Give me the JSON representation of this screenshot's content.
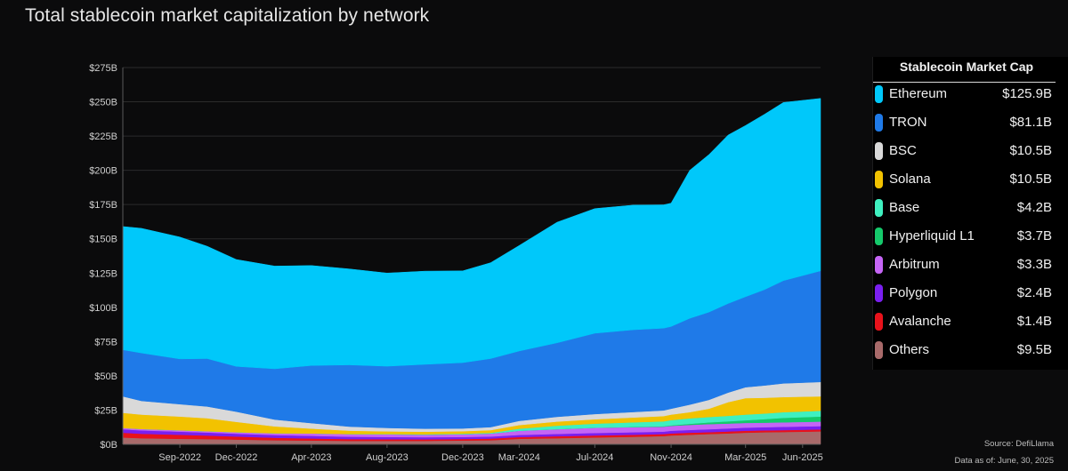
{
  "title": "Total stablecoin market capitalization by network",
  "legend": {
    "title": "Stablecoin Market Cap",
    "items": [
      {
        "name": "Ethereum",
        "value": "$125.9B",
        "color": "#00c8fa"
      },
      {
        "name": "TRON",
        "value": "$81.1B",
        "color": "#1f7ae8"
      },
      {
        "name": "BSC",
        "value": "$10.5B",
        "color": "#d9d9d9"
      },
      {
        "name": "Solana",
        "value": "$10.5B",
        "color": "#f2c200"
      },
      {
        "name": "Base",
        "value": "$4.2B",
        "color": "#3ff0c0"
      },
      {
        "name": "Hyperliquid L1",
        "value": "$3.7B",
        "color": "#15c96b"
      },
      {
        "name": "Arbitrum",
        "value": "$3.3B",
        "color": "#c565f5"
      },
      {
        "name": "Polygon",
        "value": "$2.4B",
        "color": "#7a1ff0"
      },
      {
        "name": "Avalanche",
        "value": "$1.4B",
        "color": "#e8121b"
      },
      {
        "name": "Others",
        "value": "$9.5B",
        "color": "#a86a6a"
      }
    ]
  },
  "source": "Source: DefiLlama",
  "as_of": "Data as of: June, 30, 2025",
  "chart_data": {
    "type": "area",
    "stacked": true,
    "title": "Total stablecoin market capitalization by network",
    "ylim": [
      0,
      275
    ],
    "y_unit": "$B",
    "y_ticks": [
      "$0B",
      "$25B",
      "$50B",
      "$75B",
      "$100B",
      "$125B",
      "$150B",
      "$175B",
      "$200B",
      "$225B",
      "$250B",
      "$275B"
    ],
    "x_range": [
      "2022-06-01",
      "2025-06-30"
    ],
    "x_ticks": [
      {
        "date": "2022-09-01",
        "label": "Sep-2022"
      },
      {
        "date": "2022-12-01",
        "label": "Dec-2022"
      },
      {
        "date": "2023-04-01",
        "label": "Apr-2023"
      },
      {
        "date": "2023-08-01",
        "label": "Aug-2023"
      },
      {
        "date": "2023-12-01",
        "label": "Dec-2023"
      },
      {
        "date": "2024-03-01",
        "label": "Mar-2024"
      },
      {
        "date": "2024-07-01",
        "label": "Jul-2024"
      },
      {
        "date": "2024-11-01",
        "label": "Nov-2024"
      },
      {
        "date": "2025-03-01",
        "label": "Mar-2025"
      },
      {
        "date": "2025-06-01",
        "label": "Jun-2025"
      }
    ],
    "grid": true,
    "legend_position": "right",
    "x": [
      "2022-06-01",
      "2022-07-01",
      "2022-09-01",
      "2022-10-15",
      "2022-12-01",
      "2023-02-01",
      "2023-04-01",
      "2023-06-01",
      "2023-08-01",
      "2023-10-01",
      "2023-12-01",
      "2024-01-15",
      "2024-03-01",
      "2024-05-01",
      "2024-07-01",
      "2024-09-01",
      "2024-10-20",
      "2024-11-01",
      "2024-12-01",
      "2025-01-01",
      "2025-02-01",
      "2025-03-01",
      "2025-04-01",
      "2025-05-01",
      "2025-06-30"
    ],
    "series": [
      {
        "name": "Others",
        "color": "#a86a6a",
        "values": [
          5,
          4.5,
          4,
          3.8,
          3.5,
          3,
          2.8,
          2.5,
          2.5,
          2.5,
          2.8,
          3,
          4,
          4.5,
          5,
          5.5,
          6,
          6.5,
          7,
          7.5,
          8,
          8.5,
          8.8,
          9,
          9.5
        ]
      },
      {
        "name": "Avalanche",
        "color": "#e8121b",
        "values": [
          3.5,
          3.2,
          3,
          2.6,
          2.2,
          1.8,
          1.5,
          1.3,
          1.2,
          1.1,
          1.1,
          1.2,
          1.3,
          1.4,
          1.5,
          1.5,
          1.5,
          1.5,
          1.5,
          1.4,
          1.4,
          1.4,
          1.4,
          1.4,
          1.4
        ]
      },
      {
        "name": "Polygon",
        "color": "#7a1ff0",
        "values": [
          2.5,
          2.5,
          2.3,
          2.2,
          2.1,
          2,
          1.9,
          1.8,
          1.7,
          1.6,
          1.5,
          1.5,
          1.6,
          1.7,
          1.8,
          1.8,
          1.8,
          1.9,
          2,
          2.1,
          2.2,
          2.3,
          2.3,
          2.4,
          2.4
        ]
      },
      {
        "name": "Arbitrum",
        "color": "#c565f5",
        "values": [
          1,
          1,
          1,
          1,
          1.1,
          1.3,
          1.8,
          1.9,
          1.9,
          1.9,
          2,
          2.2,
          3,
          3.5,
          3.8,
          3.7,
          3.6,
          3.6,
          3.7,
          3.8,
          3.6,
          3.4,
          3.3,
          3.3,
          3.3
        ]
      },
      {
        "name": "Hyperliquid L1",
        "color": "#15c96b",
        "values": [
          0,
          0,
          0,
          0,
          0,
          0,
          0,
          0,
          0,
          0,
          0,
          0,
          0,
          0,
          0,
          0.2,
          0.3,
          0.4,
          0.8,
          1.2,
          1.6,
          2,
          2.6,
          3.2,
          3.7
        ]
      },
      {
        "name": "Base",
        "color": "#3ff0c0",
        "values": [
          0,
          0,
          0,
          0,
          0,
          0,
          0,
          0,
          0.2,
          0.3,
          0.4,
          0.5,
          1.5,
          2.5,
          3,
          3.4,
          3.6,
          3.8,
          4,
          4,
          4,
          4.1,
          4.1,
          4.2,
          4.2
        ]
      },
      {
        "name": "Solana",
        "color": "#f2c200",
        "values": [
          11,
          10.5,
          10,
          9.5,
          7.5,
          5,
          3.5,
          2.5,
          2,
          1.8,
          1.8,
          2,
          2.7,
          3,
          3.2,
          3.5,
          3.8,
          4,
          4.5,
          6,
          10,
          12,
          11.5,
          11,
          10.5
        ]
      },
      {
        "name": "BSC",
        "color": "#d9d9d9",
        "values": [
          12,
          10,
          9,
          8.5,
          7.5,
          5,
          4,
          3,
          2.5,
          2.2,
          2,
          2.2,
          3,
          3.5,
          3.8,
          4,
          4.2,
          4.3,
          5.5,
          6.5,
          7,
          8,
          9,
          10,
          10.5
        ]
      },
      {
        "name": "TRON",
        "color": "#1f7ae8",
        "values": [
          34,
          35,
          33,
          35,
          33,
          37,
          42,
          45,
          45,
          47,
          48,
          50,
          51,
          54,
          59,
          60,
          60,
          60,
          63,
          64,
          65,
          66,
          70,
          75,
          81.1
        ]
      },
      {
        "name": "Ethereum",
        "color": "#00c8fa",
        "values": [
          90,
          91,
          89,
          82,
          78,
          75,
          73,
          70,
          68,
          68,
          67,
          70,
          77,
          88,
          91,
          91,
          90,
          90,
          108,
          115,
          123,
          125,
          128,
          130,
          125.9
        ]
      }
    ]
  }
}
